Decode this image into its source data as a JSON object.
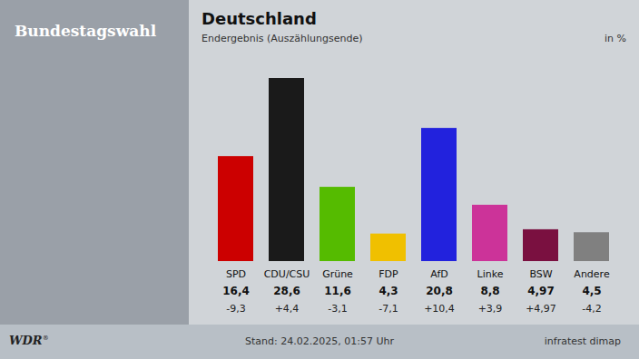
{
  "chart_data": {
    "type": "bar",
    "title": "Deutschland",
    "subtitle": "Endergebnis (Auszählungsende)",
    "annotations": [
      "Bundestagswahl",
      "in %",
      "WDR",
      "®",
      "Stand: 24.02.2025, 01:57 Uhr",
      "infratest dimap"
    ],
    "categories": [
      "SPD",
      "CDU/CSU",
      "Grüne",
      "FDP",
      "AfD",
      "Linke",
      "BSW",
      "Andere"
    ],
    "values": [
      16.4,
      28.6,
      11.6,
      4.3,
      20.8,
      8.8,
      4.97,
      4.5
    ],
    "value_labels": [
      "16,4",
      "28,6",
      "11,6",
      "4,3",
      "20,8",
      "8,8",
      "4,97",
      "4,5"
    ],
    "changes": [
      "-9,3",
      "+4,4",
      "-3,1",
      "-7,1",
      "+10,4",
      "+3,9",
      "+4,97",
      "-4,2"
    ],
    "colors": [
      "#cc0000",
      "#1a1a1a",
      "#55bb00",
      "#f0c000",
      "#2222dd",
      "#cc3399",
      "#7a1040",
      "#808080"
    ],
    "ylim": [
      0,
      32
    ],
    "data_labels": true,
    "tick_labels": false,
    "grid": false
  }
}
